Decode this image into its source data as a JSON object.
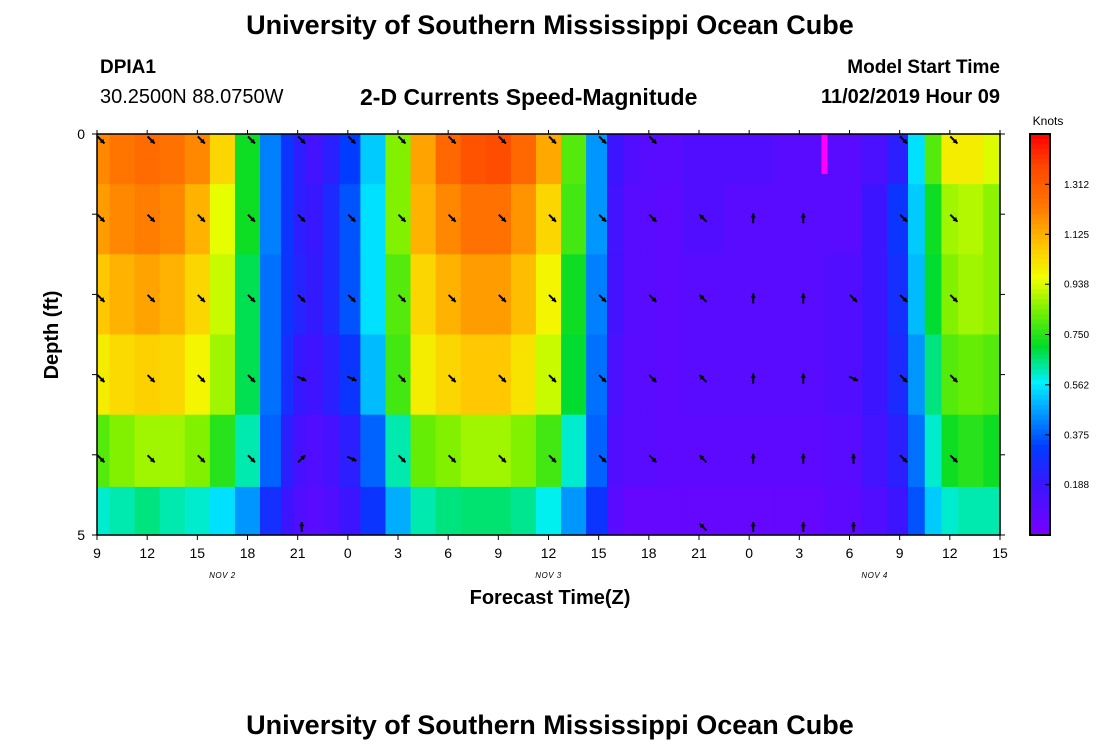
{
  "header": {
    "title": "University of Southern Mississippi Ocean Cube",
    "station_id": "DPIA1",
    "station_coords": "30.2500N 88.0750W",
    "chart_title": "2-D Currents Speed-Magnitude",
    "model_start_label": "Model Start Time",
    "model_start_value": "11/02/2019 Hour 09"
  },
  "footer": {
    "title": "University of Southern Mississippi Ocean Cube"
  },
  "chart_data": {
    "type": "heatmap",
    "title": "2-D Currents Speed-Magnitude",
    "xlabel": "Forecast Time(Z)",
    "ylabel": "Depth (ft)",
    "x_tick_labels": [
      "9",
      "12",
      "15",
      "18",
      "21",
      "0",
      "3",
      "6",
      "9",
      "12",
      "15",
      "18",
      "21",
      "0",
      "3",
      "6",
      "9",
      "12",
      "15"
    ],
    "x_hours": [
      0,
      3,
      6,
      9,
      12,
      15,
      18,
      21,
      24,
      27,
      30,
      33,
      36,
      39,
      42,
      45,
      48,
      51,
      54
    ],
    "date_labels": [
      {
        "label": "NOV 2",
        "hour": 7.5
      },
      {
        "label": "NOV 3",
        "hour": 27
      },
      {
        "label": "NOV 4",
        "hour": 46.5
      }
    ],
    "y_tick_labels": [
      "0",
      "5"
    ],
    "ylim": [
      0,
      5
    ],
    "units": "Knots",
    "colorbar": {
      "label": "Knots",
      "range": [
        0,
        1.5
      ],
      "ticks": [
        "0.188",
        "0.375",
        "0.562",
        "0.750",
        "0.938",
        "1.125",
        "1.312"
      ],
      "tick_values": [
        0.188,
        0.375,
        0.562,
        0.75,
        0.938,
        1.125,
        1.312
      ]
    },
    "time_hours": [
      0,
      1.5,
      3,
      4.5,
      6,
      7.5,
      9,
      10.5,
      11.5,
      12,
      13,
      14,
      15,
      16.5,
      18,
      19.5,
      21,
      22.5,
      24,
      25.5,
      27,
      28.5,
      30,
      31,
      32,
      33,
      34,
      36,
      39,
      42,
      45,
      46.5,
      48,
      49,
      50,
      51,
      52,
      54
    ],
    "depths": [
      0.25,
      1.0,
      2.0,
      3.0,
      4.0,
      4.8
    ],
    "speed_knots": [
      [
        1.2,
        1.24,
        1.27,
        1.25,
        1.2,
        1.05,
        0.72,
        0.42,
        0.3,
        0.22,
        0.16,
        0.22,
        0.33,
        0.52,
        0.85,
        1.15,
        1.28,
        1.34,
        1.36,
        1.28,
        1.14,
        0.8,
        0.45,
        0.18,
        0.12,
        0.1,
        0.1,
        0.12,
        0.12,
        0.1,
        0.1,
        0.14,
        0.22,
        0.55,
        0.8,
        1.0,
        1.0,
        0.94
      ],
      [
        1.16,
        1.2,
        1.22,
        1.2,
        1.12,
        0.95,
        0.72,
        0.42,
        0.3,
        0.22,
        0.19,
        0.26,
        0.36,
        0.55,
        0.85,
        1.12,
        1.2,
        1.25,
        1.25,
        1.18,
        1.05,
        0.78,
        0.45,
        0.16,
        0.1,
        0.1,
        0.08,
        0.12,
        0.1,
        0.1,
        0.1,
        0.18,
        0.3,
        0.52,
        0.72,
        0.88,
        0.9,
        0.86
      ],
      [
        1.08,
        1.12,
        1.15,
        1.12,
        1.05,
        0.92,
        0.68,
        0.4,
        0.3,
        0.24,
        0.2,
        0.26,
        0.36,
        0.55,
        0.8,
        1.05,
        1.12,
        1.16,
        1.16,
        1.1,
        0.98,
        0.72,
        0.42,
        0.16,
        0.1,
        0.1,
        0.08,
        0.1,
        0.1,
        0.1,
        0.12,
        0.18,
        0.28,
        0.5,
        0.7,
        0.85,
        0.88,
        0.86
      ],
      [
        1.0,
        1.04,
        1.06,
        1.05,
        0.98,
        0.88,
        0.68,
        0.4,
        0.28,
        0.2,
        0.17,
        0.22,
        0.3,
        0.5,
        0.78,
        1.0,
        1.05,
        1.08,
        1.08,
        1.02,
        0.92,
        0.7,
        0.4,
        0.14,
        0.1,
        0.1,
        0.08,
        0.1,
        0.1,
        0.1,
        0.12,
        0.18,
        0.26,
        0.45,
        0.65,
        0.8,
        0.82,
        0.8
      ],
      [
        0.8,
        0.85,
        0.88,
        0.88,
        0.85,
        0.75,
        0.62,
        0.38,
        0.22,
        0.15,
        0.12,
        0.15,
        0.22,
        0.38,
        0.62,
        0.82,
        0.85,
        0.88,
        0.88,
        0.85,
        0.78,
        0.6,
        0.38,
        0.12,
        0.1,
        0.1,
        0.08,
        0.08,
        0.08,
        0.08,
        0.1,
        0.16,
        0.22,
        0.4,
        0.6,
        0.72,
        0.75,
        0.72
      ],
      [
        0.6,
        0.62,
        0.65,
        0.62,
        0.6,
        0.55,
        0.45,
        0.28,
        0.18,
        0.12,
        0.1,
        0.12,
        0.18,
        0.3,
        0.48,
        0.62,
        0.65,
        0.66,
        0.66,
        0.64,
        0.58,
        0.45,
        0.3,
        0.1,
        0.06,
        0.06,
        0.06,
        0.06,
        0.06,
        0.06,
        0.08,
        0.12,
        0.18,
        0.36,
        0.52,
        0.6,
        0.62,
        0.62
      ]
    ],
    "anomaly": {
      "hour": 43.5,
      "depth_range": [
        0,
        0.5
      ],
      "speed_knots": 1.5
    },
    "vectors": {
      "hours": [
        0,
        3,
        6,
        9,
        12,
        15,
        18,
        21,
        24,
        27,
        30,
        33,
        36,
        39,
        42,
        45,
        48,
        51
      ],
      "depths": [
        0,
        1,
        2,
        3,
        4,
        5
      ],
      "direction": [
        [
          "SE",
          "SE",
          "SE",
          "SE",
          "SE",
          "SE",
          "SE",
          "SE",
          "SE",
          "SE",
          "SE",
          "SE",
          null,
          null,
          null,
          null,
          "SE",
          "SE"
        ],
        [
          "SE",
          "SE",
          "SE",
          "SE",
          "SE",
          "SE",
          "SE",
          "SE",
          "SE",
          "SE",
          "SE",
          "SE",
          "NW",
          "N",
          "N",
          null,
          "SE",
          "SE"
        ],
        [
          "SE",
          "SE",
          "SE",
          "SE",
          "SE",
          "SE",
          "SE",
          "SE",
          "SE",
          "SE",
          "SE",
          "SE",
          "NW",
          "N",
          "N",
          "SE",
          "SE",
          "SE"
        ],
        [
          "SE",
          "SE",
          "SE",
          "SE",
          "ESE",
          "ESE",
          "SE",
          "SE",
          "SE",
          "SE",
          "SE",
          "SE",
          "NW",
          "N",
          "N",
          "ESE",
          "SE",
          "SE"
        ],
        [
          "SE",
          "SE",
          "SE",
          "SE",
          "NE",
          "ESE",
          "SE",
          "SE",
          "SE",
          "SE",
          "SE",
          "SE",
          "NW",
          "N",
          "N",
          "N",
          "SE",
          "SE"
        ],
        [
          null,
          null,
          null,
          null,
          "N",
          null,
          null,
          null,
          null,
          null,
          null,
          null,
          "NW",
          "N",
          "N",
          "N",
          null,
          null
        ]
      ]
    }
  }
}
